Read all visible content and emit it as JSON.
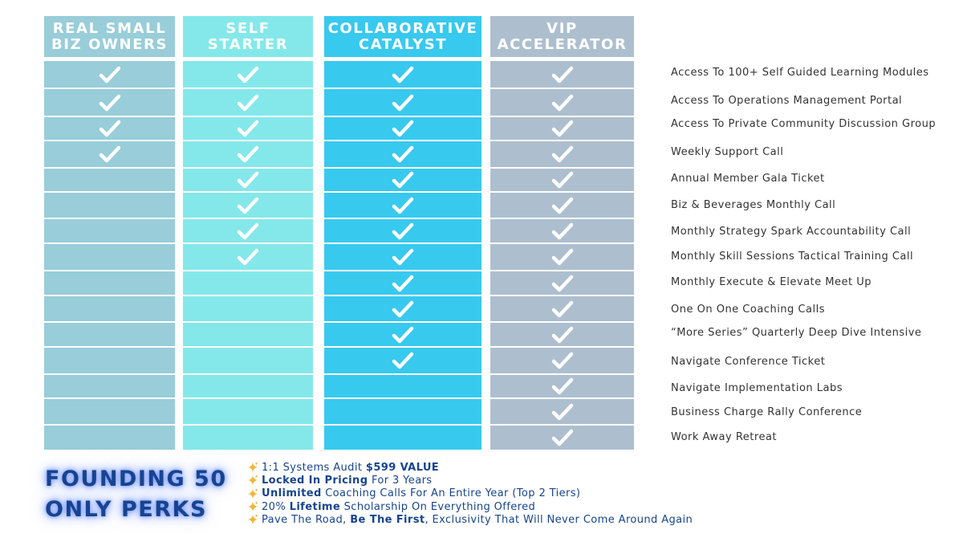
{
  "tiers": [
    {
      "name_line1": "REAL SMALL",
      "name_line2": "BIZ OWNERS",
      "color": "#98cdd9",
      "included_count": 4
    },
    {
      "name_line1": "SELF STARTER",
      "name_line2": "",
      "color": "#84e8ea",
      "included_count": 8
    },
    {
      "name_line1": "COLLABORATIVE",
      "name_line2": "CATALYST",
      "color": "#38c9ef",
      "included_count": 12
    },
    {
      "name_line1": "VIP",
      "name_line2": "ACCELERATOR",
      "color": "#adbfcf",
      "included_count": 15
    }
  ],
  "features": [
    "Access To 100+ Self Guided Learning Modules",
    "Access To Operations Management Portal",
    "Access To Private Community Discussion Group",
    "Weekly Support Call",
    "Annual Member Gala Ticket",
    "Biz & Beverages Monthly Call",
    "Monthly Strategy Spark Accountability Call",
    "Monthly Skill Sessions Tactical Training Call",
    "Monthly Execute & Elevate Meet Up",
    "One On One Coaching Calls",
    "“More Series” Quarterly Deep Dive Intensive",
    "Navigate Conference Ticket",
    "Navigate Implementation Labs",
    "Business Charge Rally Conference",
    "Work Away Retreat"
  ],
  "founding": {
    "title_line1": "FOUNDING 50",
    "title_line2": "ONLY PERKS",
    "perks": [
      {
        "a": "1:1 Systems Audit ",
        "b": "$599 VALUE",
        "c": ""
      },
      {
        "a": "",
        "b": "Locked In Pricing",
        "c": " For 3 Years"
      },
      {
        "a": "",
        "b": "Unlimited",
        "c": " Coaching Calls For An Entire Year (Top 2 Tiers)"
      },
      {
        "a": "20% ",
        "b": "Lifetime",
        "c": " Scholarship On Everything Offered"
      },
      {
        "a": "Pave The Road, ",
        "b": "Be The First",
        "c": ", Exclusivity That Will Never Come Around Again"
      }
    ]
  },
  "colors": {
    "title": "#17448f",
    "sparkle": "#f2b43a",
    "check": "#ffffff",
    "feature_text": "#333333"
  },
  "icons": {
    "check": "checkmark-icon",
    "perk": "sparkle-icon"
  }
}
